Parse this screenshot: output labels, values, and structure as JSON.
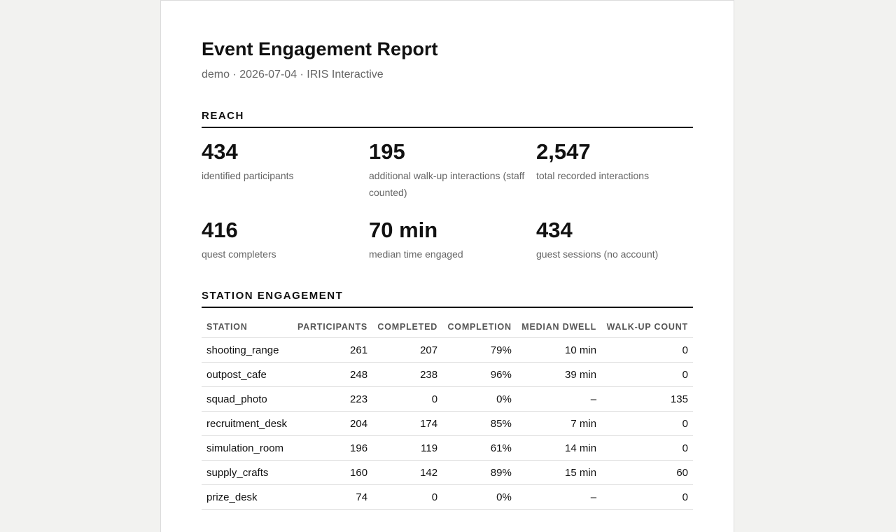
{
  "report": {
    "title": "Event Engagement Report",
    "subtitle": "demo · 2026-07-04 · IRIS Interactive"
  },
  "reach": {
    "heading": "REACH",
    "metrics": [
      {
        "value": "434",
        "label": "identified participants"
      },
      {
        "value": "195",
        "label": "additional walk-up interactions (staff counted)"
      },
      {
        "value": "2,547",
        "label": "total recorded interactions"
      },
      {
        "value": "416",
        "label": "quest completers"
      },
      {
        "value": "70 min",
        "label": "median time engaged"
      },
      {
        "value": "434",
        "label": "guest sessions (no account)"
      }
    ]
  },
  "stations": {
    "heading": "STATION ENGAGEMENT",
    "columns": [
      "STATION",
      "PARTICIPANTS",
      "COMPLETED",
      "COMPLETION",
      "MEDIAN DWELL",
      "WALK-UP COUNT"
    ],
    "rows": [
      [
        "shooting_range",
        "261",
        "207",
        "79%",
        "10 min",
        "0"
      ],
      [
        "outpost_cafe",
        "248",
        "238",
        "96%",
        "39 min",
        "0"
      ],
      [
        "squad_photo",
        "223",
        "0",
        "0%",
        "–",
        "135"
      ],
      [
        "recruitment_desk",
        "204",
        "174",
        "85%",
        "7 min",
        "0"
      ],
      [
        "simulation_room",
        "196",
        "119",
        "61%",
        "14 min",
        "0"
      ],
      [
        "supply_crafts",
        "160",
        "142",
        "89%",
        "15 min",
        "60"
      ],
      [
        "prize_desk",
        "74",
        "0",
        "0%",
        "–",
        "0"
      ]
    ]
  }
}
